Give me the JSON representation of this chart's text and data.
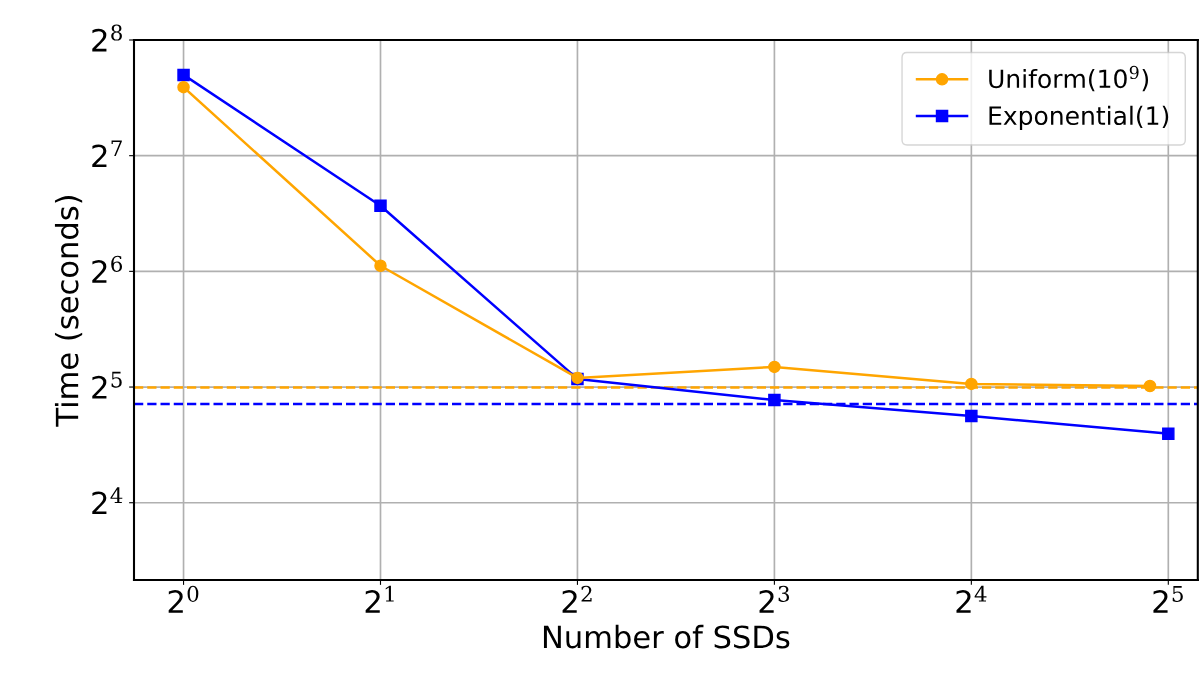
{
  "chart_data": {
    "type": "line",
    "xlabel": "Number of SSDs",
    "ylabel": "Time (seconds)",
    "log": "xy",
    "grid": true,
    "legend": "top right",
    "xlim": [
      0.84,
      35.5
    ],
    "ylim": [
      10.07,
      256
    ],
    "xticks": [
      {
        "value": 1,
        "label": "2$^{0}$"
      },
      {
        "value": 2,
        "label": "2$^{1}$"
      },
      {
        "value": 4,
        "label": "2$^{2}$"
      },
      {
        "value": 8,
        "label": "2$^{3}$"
      },
      {
        "value": 16,
        "label": "2$^{4}$"
      },
      {
        "value": 32,
        "label": "2$^{5}$"
      }
    ],
    "yticks": [
      {
        "value": 16,
        "label": "2$^{4}$"
      },
      {
        "value": 32,
        "label": "2$^{5}$"
      },
      {
        "value": 64,
        "label": "2$^{6}$"
      },
      {
        "value": 128,
        "label": "2$^{7}$"
      },
      {
        "value": 256,
        "label": "2$^{8}$"
      }
    ],
    "series": [
      {
        "name": "Uniform(10$^{9}$)",
        "color": "#ffa500",
        "marker": "circle",
        "x": [
          1,
          2,
          4,
          8,
          16,
          30
        ],
        "values": [
          193,
          66.2,
          33.8,
          36.1,
          32.6,
          32.2
        ]
      },
      {
        "name": "Exponential(1)",
        "color": "#0000ff",
        "marker": "square",
        "x": [
          1,
          2,
          4,
          8,
          16,
          32
        ],
        "values": [
          207.7,
          94.8,
          33.6,
          29.6,
          26.9,
          24.2
        ]
      }
    ],
    "ref_lines": [
      {
        "axis": "y",
        "value": 31.9,
        "color": "#ffa500",
        "line_style": "dashed"
      },
      {
        "axis": "y",
        "value": 28.9,
        "color": "#0000ff",
        "line_style": "dashed"
      }
    ]
  }
}
